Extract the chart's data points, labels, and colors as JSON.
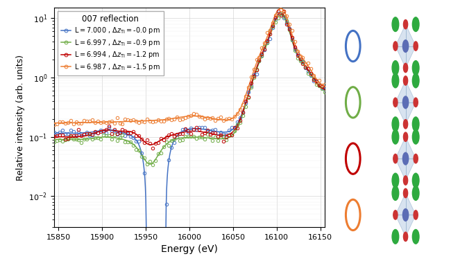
{
  "title": "007 reflection",
  "xlabel": "Energy (eV)",
  "ylabel": "Relative intensity (arb. units)",
  "xlim": [
    15845,
    16155
  ],
  "ylim_log": [
    0.003,
    15
  ],
  "colors": [
    "#4472C4",
    "#70AD47",
    "#C00000",
    "#ED7D31"
  ],
  "dz_values": [
    0.0,
    0.9,
    1.2,
    1.5
  ],
  "crystal_colors": {
    "green": "#2EAA3F",
    "blue": "#5B6DB5",
    "red": "#CC3333",
    "octahedron_fill": "#B8CCE4"
  },
  "E_range": [
    15845,
    16155
  ],
  "n_smooth": 600,
  "n_coarse": 100,
  "noise_seed": 42,
  "noise_sigma": 0.07
}
